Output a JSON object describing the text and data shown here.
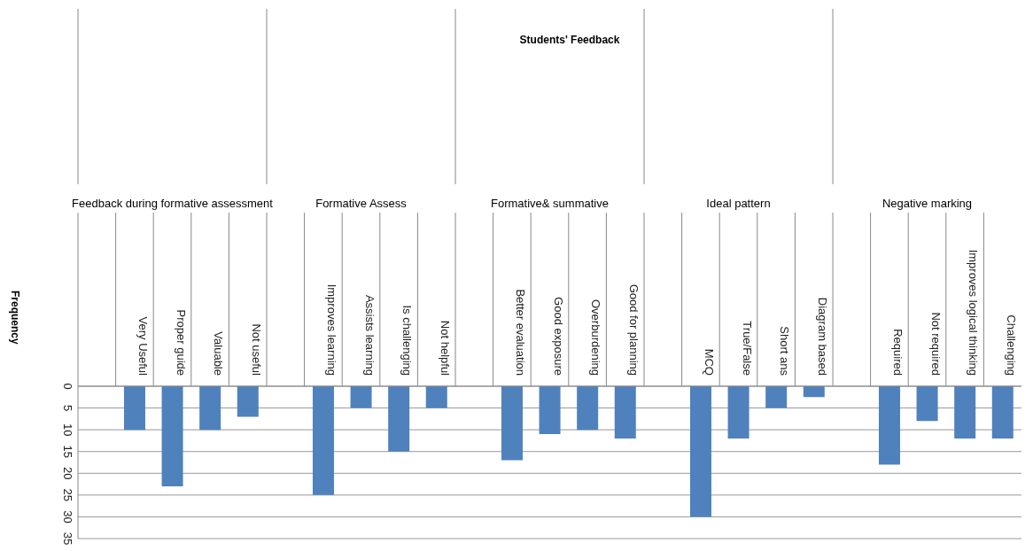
{
  "chart_data": {
    "type": "bar",
    "title": "Students' Feedback",
    "ylabel": "Frequency",
    "categories": [
      null,
      "Very Useful",
      "Proper guide",
      "Valuable",
      "Not useful",
      null,
      "Improves learning",
      "Assists learning",
      "Is challenging",
      "Not helpful",
      null,
      "Better evaluation",
      "Good exposure",
      "Overburdening",
      "Good for planning",
      null,
      "MCQ",
      "True/False",
      "Short ans",
      "Diagram based",
      null,
      "Required",
      "Not required",
      "Improves logical thinking",
      "Challenging"
    ],
    "values": [
      null,
      10,
      23,
      10,
      7,
      null,
      25,
      5,
      15,
      5,
      null,
      17,
      11,
      10,
      12,
      null,
      30,
      12,
      5,
      2.5,
      null,
      18,
      8,
      12,
      12
    ],
    "color": "#4f81bd",
    "annotations": [
      "Feedback during formative assessment",
      "Formative Assess",
      "Formative& summative",
      "Ideal pattern",
      "Negative marking"
    ],
    "ylim": [
      35,
      0
    ],
    "yticks": [
      0,
      5,
      10,
      15,
      20,
      25,
      30,
      35
    ],
    "grid": "y"
  }
}
